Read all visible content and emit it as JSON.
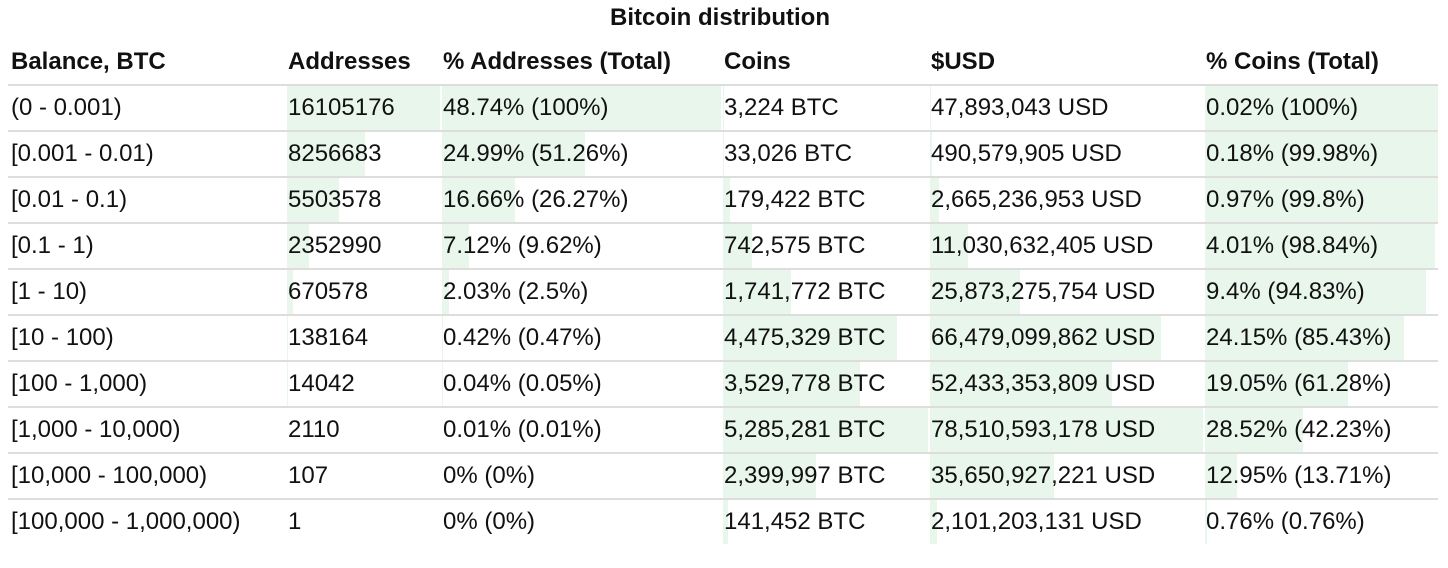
{
  "chart_data": {
    "type": "table",
    "title": "Bitcoin distribution",
    "columns": [
      "Balance, BTC",
      "Addresses",
      "% Addresses (Total)",
      "Coins",
      "$USD",
      "% Coins (Total)"
    ],
    "rows": [
      {
        "balance": "(0 - 0.001)",
        "addresses": 16105176,
        "addresses_text": "16105176",
        "pct_addr": "48.74% (100%)",
        "pct_addr_total": 100,
        "coins": 3224,
        "coins_text": "3,224 BTC",
        "usd": 47893043,
        "usd_text": "47,893,043 USD",
        "pct_coins": "0.02% (100%)",
        "pct_coins_total": 100
      },
      {
        "balance": "[0.001 - 0.01)",
        "addresses": 8256683,
        "addresses_text": "8256683",
        "pct_addr": "24.99% (51.26%)",
        "pct_addr_total": 51.26,
        "coins": 33026,
        "coins_text": "33,026 BTC",
        "usd": 490579905,
        "usd_text": "490,579,905 USD",
        "pct_coins": "0.18% (99.98%)",
        "pct_coins_total": 99.98
      },
      {
        "balance": "[0.01 - 0.1)",
        "addresses": 5503578,
        "addresses_text": "5503578",
        "pct_addr": "16.66% (26.27%)",
        "pct_addr_total": 26.27,
        "coins": 179422,
        "coins_text": "179,422 BTC",
        "usd": 2665236953,
        "usd_text": "2,665,236,953 USD",
        "pct_coins": "0.97% (99.8%)",
        "pct_coins_total": 99.8
      },
      {
        "balance": "[0.1 - 1)",
        "addresses": 2352990,
        "addresses_text": "2352990",
        "pct_addr": "7.12% (9.62%)",
        "pct_addr_total": 9.62,
        "coins": 742575,
        "coins_text": "742,575 BTC",
        "usd": 11030632405,
        "usd_text": "11,030,632,405 USD",
        "pct_coins": "4.01% (98.84%)",
        "pct_coins_total": 98.84
      },
      {
        "balance": "[1 - 10)",
        "addresses": 670578,
        "addresses_text": "670578",
        "pct_addr": "2.03% (2.5%)",
        "pct_addr_total": 2.5,
        "coins": 1741772,
        "coins_text": "1,741,772 BTC",
        "usd": 25873275754,
        "usd_text": "25,873,275,754 USD",
        "pct_coins": "9.4% (94.83%)",
        "pct_coins_total": 94.83
      },
      {
        "balance": "[10 - 100)",
        "addresses": 138164,
        "addresses_text": "138164",
        "pct_addr": "0.42% (0.47%)",
        "pct_addr_total": 0.47,
        "coins": 4475329,
        "coins_text": "4,475,329 BTC",
        "usd": 66479099862,
        "usd_text": "66,479,099,862 USD",
        "pct_coins": "24.15% (85.43%)",
        "pct_coins_total": 85.43
      },
      {
        "balance": "[100 - 1,000)",
        "addresses": 14042,
        "addresses_text": "14042",
        "pct_addr": "0.04% (0.05%)",
        "pct_addr_total": 0.05,
        "coins": 3529778,
        "coins_text": "3,529,778 BTC",
        "usd": 52433353809,
        "usd_text": "52,433,353,809 USD",
        "pct_coins": "19.05% (61.28%)",
        "pct_coins_total": 61.28
      },
      {
        "balance": "[1,000 - 10,000)",
        "addresses": 2110,
        "addresses_text": "2110",
        "pct_addr": "0.01% (0.01%)",
        "pct_addr_total": 0.01,
        "coins": 5285281,
        "coins_text": "5,285,281 BTC",
        "usd": 78510593178,
        "usd_text": "78,510,593,178 USD",
        "pct_coins": "28.52% (42.23%)",
        "pct_coins_total": 42.23
      },
      {
        "balance": "[10,000 - 100,000)",
        "addresses": 107,
        "addresses_text": "107",
        "pct_addr": "0% (0%)",
        "pct_addr_total": 0,
        "coins": 2399997,
        "coins_text": "2,399,997 BTC",
        "usd": 35650927221,
        "usd_text": "35,650,927,221 USD",
        "pct_coins": "12.95% (13.71%)",
        "pct_coins_total": 13.71
      },
      {
        "balance": "[100,000 - 1,000,000)",
        "addresses": 1,
        "addresses_text": "1",
        "pct_addr": "0% (0%)",
        "pct_addr_total": 0,
        "coins": 141452,
        "coins_text": "141,452 BTC",
        "usd": 2101203131,
        "usd_text": "2,101,203,131 USD",
        "pct_coins": "0.76% (0.76%)",
        "pct_coins_total": 0.76
      }
    ],
    "bar_color": "#e8f6ec"
  }
}
